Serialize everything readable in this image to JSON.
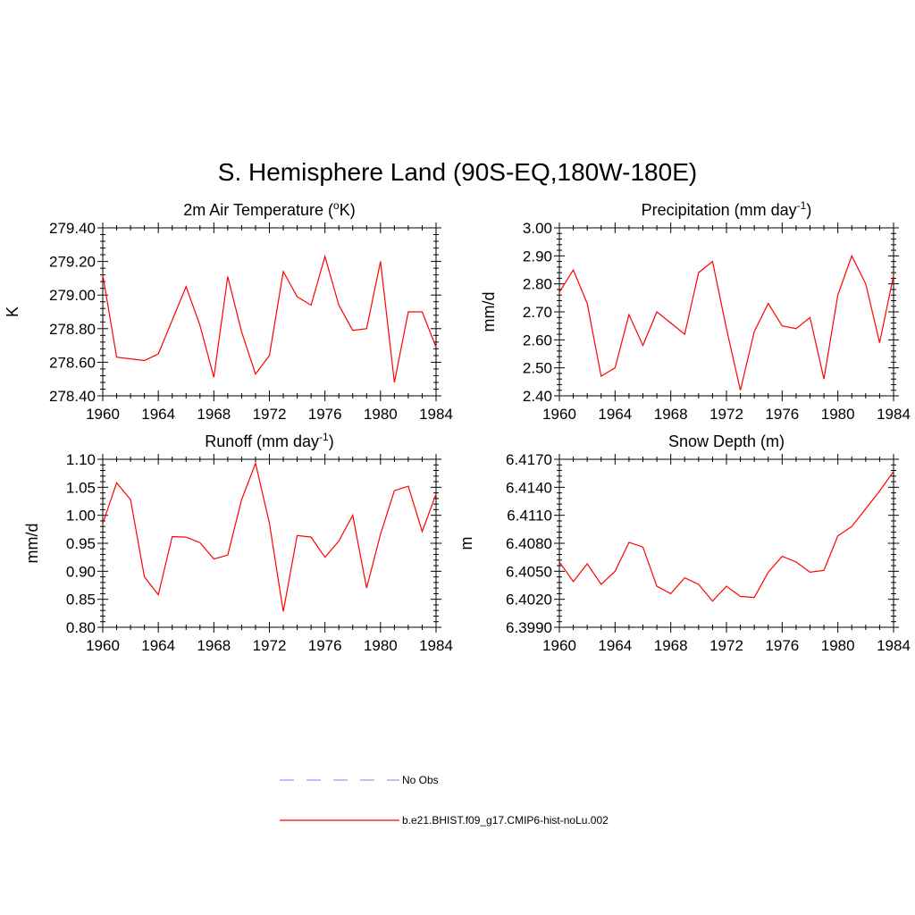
{
  "figure": {
    "title": "S. Hemisphere Land (90S-EQ,180W-180E)",
    "series_color": "#ff0000",
    "obs_color": "#9999ff"
  },
  "legend": [
    {
      "label": "No Obs",
      "style": "dashed",
      "color": "#9999ff"
    },
    {
      "label": "b.e21.BHIST.f09_g17.CMIP6-hist-noLu.002",
      "style": "solid",
      "color": "#ff0000"
    }
  ],
  "chart_data": [
    {
      "type": "line",
      "title_main": "2m Air Temperature (",
      "title_sup": "o",
      "title_tail": "K)",
      "ylabel": "K",
      "xlim": [
        1960,
        1984
      ],
      "ylim": [
        278.4,
        279.4
      ],
      "yticks": [
        "278.40",
        "278.60",
        "278.80",
        "279.00",
        "279.20",
        "279.40"
      ],
      "xticks": [
        "1960",
        "1964",
        "1968",
        "1972",
        "1976",
        "1980",
        "1984"
      ],
      "x": [
        1960,
        1961,
        1962,
        1963,
        1964,
        1965,
        1966,
        1967,
        1968,
        1969,
        1970,
        1971,
        1972,
        1973,
        1974,
        1975,
        1976,
        1977,
        1978,
        1979,
        1980,
        1981,
        1982,
        1983,
        1984
      ],
      "series": [
        {
          "name": "b.e21.BHIST.f09_g17.CMIP6-hist-noLu.002",
          "values": [
            279.12,
            278.63,
            278.62,
            278.61,
            278.65,
            278.85,
            279.05,
            278.82,
            278.51,
            279.11,
            278.78,
            278.53,
            278.64,
            279.14,
            278.99,
            278.94,
            279.23,
            278.94,
            278.79,
            278.8,
            279.2,
            278.48,
            278.9,
            278.9,
            278.69
          ]
        }
      ]
    },
    {
      "type": "line",
      "title_main": "Precipitation (mm day",
      "title_sup": "-1",
      "title_tail": ")",
      "ylabel": "mm/d",
      "xlim": [
        1960,
        1984
      ],
      "ylim": [
        2.4,
        3.0
      ],
      "yticks": [
        "2.40",
        "2.50",
        "2.60",
        "2.70",
        "2.80",
        "2.90",
        "3.00"
      ],
      "xticks": [
        "1960",
        "1964",
        "1968",
        "1972",
        "1976",
        "1980",
        "1984"
      ],
      "x": [
        1960,
        1961,
        1962,
        1963,
        1964,
        1965,
        1966,
        1967,
        1968,
        1969,
        1970,
        1971,
        1972,
        1973,
        1974,
        1975,
        1976,
        1977,
        1978,
        1979,
        1980,
        1981,
        1982,
        1983,
        1984
      ],
      "series": [
        {
          "name": "b.e21.BHIST.f09_g17.CMIP6-hist-noLu.002",
          "values": [
            2.77,
            2.85,
            2.73,
            2.47,
            2.5,
            2.69,
            2.58,
            2.7,
            2.66,
            2.62,
            2.84,
            2.88,
            2.64,
            2.42,
            2.63,
            2.73,
            2.65,
            2.64,
            2.68,
            2.46,
            2.76,
            2.9,
            2.8,
            2.59,
            2.83
          ]
        }
      ]
    },
    {
      "type": "line",
      "title_main": "Runoff (mm day",
      "title_sup": "-1",
      "title_tail": ")",
      "ylabel": "mm/d",
      "xlim": [
        1960,
        1984
      ],
      "ylim": [
        0.8,
        1.1
      ],
      "yticks": [
        "0.80",
        "0.85",
        "0.90",
        "0.95",
        "1.00",
        "1.05",
        "1.10"
      ],
      "xticks": [
        "1960",
        "1964",
        "1968",
        "1972",
        "1976",
        "1980",
        "1984"
      ],
      "x": [
        1960,
        1961,
        1962,
        1963,
        1964,
        1965,
        1966,
        1967,
        1968,
        1969,
        1970,
        1971,
        1972,
        1973,
        1974,
        1975,
        1976,
        1977,
        1978,
        1979,
        1980,
        1981,
        1982,
        1983,
        1984
      ],
      "series": [
        {
          "name": "b.e21.BHIST.f09_g17.CMIP6-hist-noLu.002",
          "values": [
            0.985,
            1.058,
            1.028,
            0.89,
            0.858,
            0.962,
            0.961,
            0.951,
            0.922,
            0.929,
            1.028,
            1.093,
            0.986,
            0.828,
            0.964,
            0.961,
            0.925,
            0.954,
            1.0,
            0.87,
            0.966,
            1.044,
            1.052,
            0.971,
            1.038
          ]
        }
      ]
    },
    {
      "type": "line",
      "title_main": "Snow Depth (m)",
      "title_sup": "",
      "title_tail": "",
      "ylabel": "m",
      "xlim": [
        1960,
        1984
      ],
      "ylim": [
        6.399,
        6.417
      ],
      "yticks": [
        "6.3990",
        "6.4020",
        "6.4050",
        "6.4080",
        "6.4110",
        "6.4140",
        "6.4170"
      ],
      "xticks": [
        "1960",
        "1964",
        "1968",
        "1972",
        "1976",
        "1980",
        "1984"
      ],
      "x": [
        1960,
        1961,
        1962,
        1963,
        1964,
        1965,
        1966,
        1967,
        1968,
        1969,
        1970,
        1971,
        1972,
        1973,
        1974,
        1975,
        1976,
        1977,
        1978,
        1979,
        1980,
        1981,
        1982,
        1983,
        1984
      ],
      "series": [
        {
          "name": "b.e21.BHIST.f09_g17.CMIP6-hist-noLu.002",
          "values": [
            6.406,
            6.4039,
            6.4058,
            6.4036,
            6.405,
            6.4081,
            6.4076,
            6.4034,
            6.4026,
            6.4043,
            6.4036,
            6.4018,
            6.4034,
            6.4023,
            6.4022,
            6.4049,
            6.4066,
            6.406,
            6.4049,
            6.4051,
            6.4088,
            6.4098,
            6.4117,
            6.4136,
            6.4157
          ]
        }
      ]
    }
  ]
}
